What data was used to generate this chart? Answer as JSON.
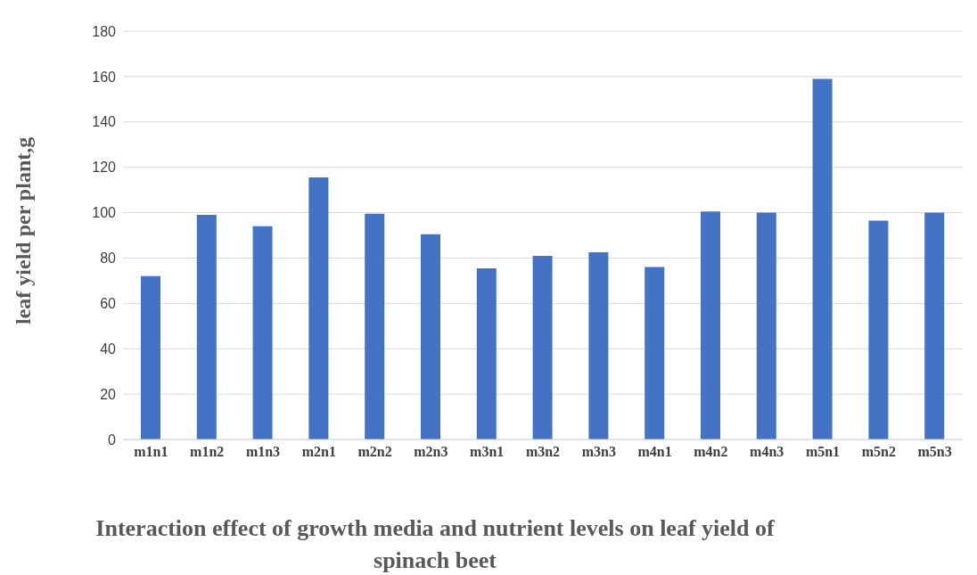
{
  "chart_data": {
    "type": "bar",
    "title": "Interaction effect of growth media and nutrient levels on leaf yield of spinach beet",
    "ylabel": "leaf yield per plant,g",
    "categories": [
      "m1n1",
      "m1n2",
      "m1n3",
      "m2n1",
      "m2n2",
      "m2n3",
      "m3n1",
      "m3n2",
      "m3n3",
      "m4n1",
      "m4n2",
      "m4n3",
      "m5n1",
      "m5n2",
      "m5n3"
    ],
    "values": [
      72,
      99,
      94,
      115.5,
      99.5,
      90.5,
      75.5,
      81,
      82.5,
      76,
      100.5,
      100,
      159,
      96.5,
      100
    ],
    "color": "#4472c4",
    "ylim": [
      0,
      180
    ],
    "yticks": [
      0,
      20,
      40,
      60,
      80,
      100,
      120,
      140,
      160,
      180
    ],
    "grid": "y"
  }
}
